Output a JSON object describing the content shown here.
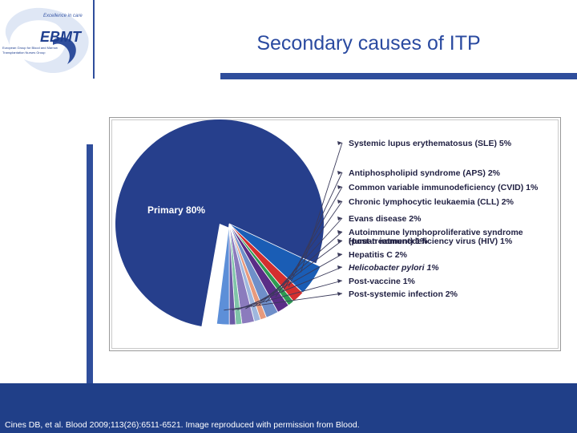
{
  "header": {
    "title": "Secondary causes of ITP",
    "logo": {
      "tagline": "Excellence in care",
      "name": "EBMT",
      "org_line1": "European Group for Blood and Marrow",
      "org_line2": "Transplantation Nurses Group"
    }
  },
  "footer": {
    "citation": "Cines DB, et al. Blood 2009;113(26):6511-6521. Image reproduced with permission from Blood."
  },
  "chart_data": {
    "type": "pie",
    "title": "",
    "inside_label": "Primary 80%",
    "slices": [
      {
        "label": "Primary 80%",
        "value": 80,
        "color": "#263f8c",
        "callout": false
      },
      {
        "label": "Systemic lupus erythematosus (SLE) 5%",
        "value": 5,
        "color": "#1a5db5",
        "callout": true
      },
      {
        "label": "Antiphospholipid syndrome (APS) 2%",
        "value": 2,
        "color": "#d42f2f",
        "callout": true
      },
      {
        "label": "Common variable immunodeficiency (CVID) 1%",
        "value": 1,
        "color": "#2e9a52",
        "callout": true
      },
      {
        "label": "Chronic lymphocytic leukaemia (CLL) 2%",
        "value": 2,
        "color": "#5a2d86",
        "callout": true
      },
      {
        "label": "Evans disease 2%",
        "value": 2,
        "color": "#6f8fc9",
        "callout": true
      },
      {
        "label": "Autoimmune lymphoproliferative syndrome (post-treatment) 1%",
        "value": 1,
        "color": "#e89a7d",
        "callout": true
      },
      {
        "label": "Human immunodeficiency virus (HIV) 1%",
        "value": 1,
        "color": "#9fb7de",
        "callout": true
      },
      {
        "label": "Hepatitis C 2%",
        "value": 2,
        "color": "#8b7bbd",
        "callout": true
      },
      {
        "label": "Helicobacter pylori 1%",
        "value": 1,
        "color": "#7fc4a8",
        "callout": true
      },
      {
        "label": "Post-vaccine 1%",
        "value": 1,
        "color": "#6b5aa5",
        "callout": true
      },
      {
        "label": "Post-systemic infection 2%",
        "value": 2,
        "color": "#5d8fd8",
        "callout": true
      }
    ]
  }
}
